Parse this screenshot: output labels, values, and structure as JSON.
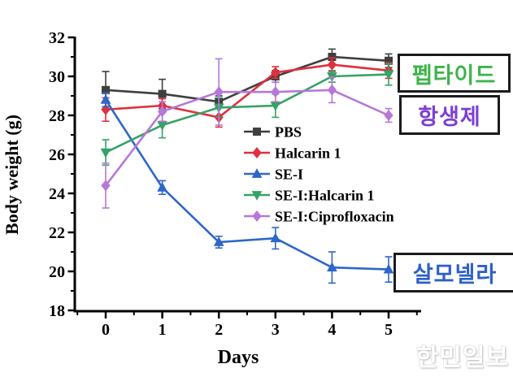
{
  "chart_data": {
    "type": "line",
    "title": "",
    "xlabel": "Days",
    "ylabel": "Body weight (g)",
    "x": [
      0,
      1,
      2,
      3,
      4,
      5
    ],
    "xlim": [
      -0.55,
      5.57
    ],
    "ylim": [
      18,
      32
    ],
    "yticks": [
      18,
      20,
      22,
      24,
      26,
      28,
      30,
      32
    ],
    "grid": false,
    "legend_position": "inside-center-right",
    "series": [
      {
        "name": "PBS",
        "color": "#3f3f3f",
        "marker": "square",
        "values": [
          29.3,
          29.1,
          28.7,
          30.0,
          31.0,
          30.8
        ],
        "errors": [
          0.95,
          0.75,
          0.3,
          0.3,
          0.4,
          0.35
        ]
      },
      {
        "name": "Halcarin 1",
        "color": "#e02f3e",
        "marker": "diamond",
        "values": [
          28.3,
          28.5,
          27.9,
          30.2,
          30.6,
          30.3
        ],
        "errors": [
          0.6,
          0.35,
          0.5,
          0.3,
          0.35,
          0.4
        ]
      },
      {
        "name": "SE-I",
        "color": "#2f66c9",
        "marker": "triangle-up",
        "values": [
          28.8,
          24.3,
          21.5,
          21.7,
          20.2,
          20.1
        ],
        "errors": [
          0.35,
          0.35,
          0.3,
          0.55,
          0.8,
          0.65
        ]
      },
      {
        "name": "SE-I:Halcarin 1",
        "color": "#35a266",
        "marker": "triangle-down",
        "values": [
          26.1,
          27.5,
          28.4,
          28.5,
          30.0,
          30.1
        ],
        "errors": [
          0.65,
          0.65,
          0.5,
          0.6,
          0.3,
          0.55
        ]
      },
      {
        "name": "SE-I:Ciprofloxacin",
        "color": "#b678d8",
        "marker": "diamond",
        "values": [
          24.4,
          28.2,
          29.2,
          29.2,
          29.3,
          28.0
        ],
        "errors": [
          1.15,
          0.5,
          1.7,
          0.5,
          0.65,
          0.35
        ]
      }
    ]
  },
  "annotations": {
    "peptide": {
      "text": "펩타이드",
      "color": "#3cb44a"
    },
    "antibiotic": {
      "text": "항생제",
      "color": "#7d3fd0"
    },
    "salmonella": {
      "text": "살모넬라",
      "color": "#2c5fc9"
    }
  },
  "watermark": {
    "text": "한민일보"
  }
}
